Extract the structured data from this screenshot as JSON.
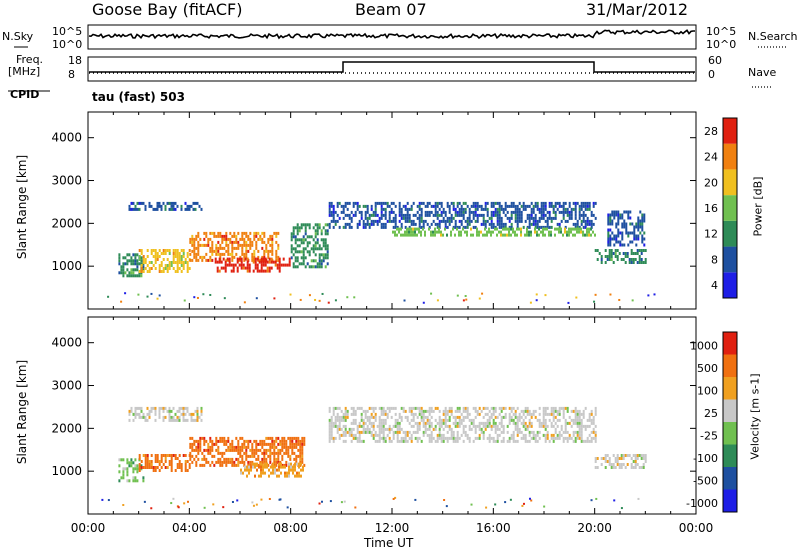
{
  "header": {
    "station": "Goose Bay (fitACF)",
    "beam": "Beam 07",
    "date": "31/Mar/2012"
  },
  "noise_panel": {
    "left_label": "N.Sky",
    "right_label": "N.Search",
    "left_ticks": [
      "10^5",
      "10^0"
    ],
    "right_ticks": [
      "10^5",
      "10^0"
    ]
  },
  "freq_panel": {
    "left_label_1": "Freq.",
    "left_label_2": "[MHz]",
    "right_label": "Nave",
    "left_ticks": [
      "18",
      "8"
    ],
    "right_ticks": [
      "60",
      "0"
    ]
  },
  "cpid": {
    "label": "CPID",
    "value": "tau (fast) 503"
  },
  "x_axis": {
    "title": "Time UT",
    "ticks": [
      "00:00",
      "04:00",
      "08:00",
      "12:00",
      "16:00",
      "20:00",
      "00:00"
    ]
  },
  "chart_data": [
    {
      "type": "heatmap",
      "title": "",
      "xlabel": "",
      "ylabel": "Slant Range [km]",
      "xlim": [
        0,
        24
      ],
      "ylim": [
        0,
        4600
      ],
      "yticks": [
        "1000",
        "2000",
        "3000",
        "4000"
      ],
      "colorbar_label": "Power [dB]",
      "colorbar_ticks": [
        "4",
        "8",
        "12",
        "16",
        "20",
        "24",
        "28"
      ],
      "colors": [
        "#1e1ee6",
        "#1e50a0",
        "#2e8b57",
        "#70c050",
        "#f0c020",
        "#f08010",
        "#e02010"
      ],
      "regions": [
        {
          "t": [
            1.2,
            2.2
          ],
          "r": [
            800,
            1300
          ],
          "level": 2
        },
        {
          "t": [
            1.6,
            4.5
          ],
          "r": [
            2300,
            2500
          ],
          "level": 1
        },
        {
          "t": [
            2.0,
            4.0
          ],
          "r": [
            900,
            1400
          ],
          "level": 4
        },
        {
          "t": [
            4.0,
            7.5
          ],
          "r": [
            1100,
            1800
          ],
          "level": 5
        },
        {
          "t": [
            5.0,
            8.0
          ],
          "r": [
            900,
            1200
          ],
          "level": 6
        },
        {
          "t": [
            8.0,
            9.5
          ],
          "r": [
            1000,
            2000
          ],
          "level": 2
        },
        {
          "t": [
            9.5,
            20.0
          ],
          "r": [
            1900,
            2500
          ],
          "level": 1
        },
        {
          "t": [
            12.0,
            20.0
          ],
          "r": [
            1700,
            1900
          ],
          "level": 3
        },
        {
          "t": [
            20.0,
            22.0
          ],
          "r": [
            1100,
            1400
          ],
          "level": 2
        },
        {
          "t": [
            20.5,
            22.0
          ],
          "r": [
            1500,
            2300
          ],
          "level": 1
        }
      ]
    },
    {
      "type": "heatmap",
      "title": "",
      "xlabel": "Time UT",
      "ylabel": "Slant Range [km]",
      "xlim": [
        0,
        24
      ],
      "ylim": [
        0,
        4600
      ],
      "yticks": [
        "1000",
        "2000",
        "3000",
        "4000"
      ],
      "colorbar_label": "Velocity [m s-1]",
      "colorbar_ticks": [
        "1000",
        "500",
        "100",
        "25",
        "-25",
        "-100",
        "-500",
        "-1000"
      ],
      "colors": [
        "#1e1ee6",
        "#1e50a0",
        "#2e8b57",
        "#70c050",
        "#c8c8c8",
        "#f0a020",
        "#f07010",
        "#e02010"
      ],
      "regions": [
        {
          "t": [
            1.2,
            2.2
          ],
          "r": [
            800,
            1300
          ],
          "level": 3
        },
        {
          "t": [
            1.6,
            4.5
          ],
          "r": [
            2200,
            2500
          ],
          "level": 4
        },
        {
          "t": [
            2.0,
            4.0
          ],
          "r": [
            1000,
            1400
          ],
          "level": 6
        },
        {
          "t": [
            4.0,
            8.5
          ],
          "r": [
            1100,
            1800
          ],
          "level": 6
        },
        {
          "t": [
            6.0,
            8.5
          ],
          "r": [
            900,
            1200
          ],
          "level": 5
        },
        {
          "t": [
            9.5,
            20.0
          ],
          "r": [
            1700,
            2500
          ],
          "level": 4
        },
        {
          "t": [
            20.0,
            22.0
          ],
          "r": [
            1100,
            1400
          ],
          "level": 4
        }
      ]
    }
  ]
}
